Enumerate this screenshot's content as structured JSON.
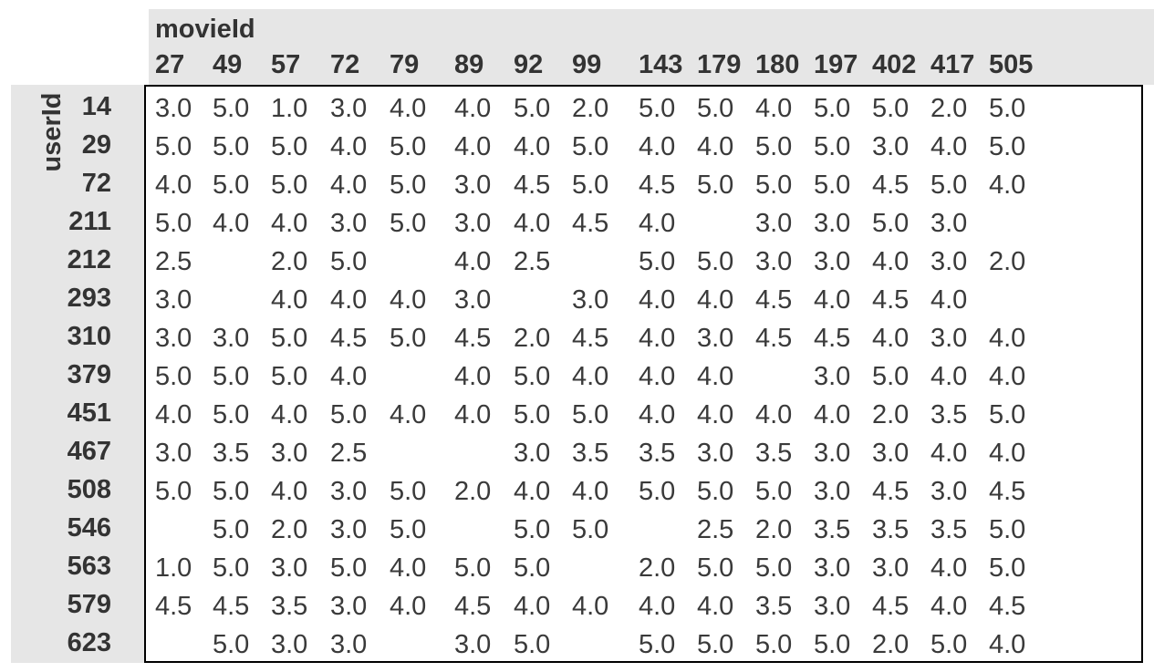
{
  "colors": {
    "header_bg": "#e6e6e6",
    "header_text": "#333333",
    "cell_text": "#3a3a3a",
    "grid_border": "#000000",
    "page_bg": "#ffffff"
  },
  "table": {
    "col_axis_label": "movieId",
    "row_axis_label": "userId"
  },
  "chart_data": {
    "type": "table",
    "title": "",
    "col_header_name": "movieId",
    "row_header_name": "userId",
    "columns": [
      27,
      49,
      57,
      72,
      79,
      89,
      92,
      99,
      143,
      179,
      180,
      197,
      402,
      417,
      505
    ],
    "value_format": "1 decimal place, blank = missing rating",
    "rows": [
      {
        "userId": 14,
        "values": [
          3.0,
          5.0,
          1.0,
          3.0,
          4.0,
          4.0,
          5.0,
          2.0,
          5.0,
          5.0,
          4.0,
          5.0,
          5.0,
          2.0,
          5.0
        ]
      },
      {
        "userId": 29,
        "values": [
          5.0,
          5.0,
          5.0,
          4.0,
          5.0,
          4.0,
          4.0,
          5.0,
          4.0,
          4.0,
          5.0,
          5.0,
          3.0,
          4.0,
          5.0
        ]
      },
      {
        "userId": 72,
        "values": [
          4.0,
          5.0,
          5.0,
          4.0,
          5.0,
          3.0,
          4.5,
          5.0,
          4.5,
          5.0,
          5.0,
          5.0,
          4.5,
          5.0,
          4.0
        ]
      },
      {
        "userId": 211,
        "values": [
          5.0,
          4.0,
          4.0,
          3.0,
          5.0,
          3.0,
          4.0,
          4.5,
          4.0,
          null,
          3.0,
          3.0,
          5.0,
          3.0,
          null
        ]
      },
      {
        "userId": 212,
        "values": [
          2.5,
          null,
          2.0,
          5.0,
          null,
          4.0,
          2.5,
          null,
          5.0,
          5.0,
          3.0,
          3.0,
          4.0,
          3.0,
          2.0
        ]
      },
      {
        "userId": 293,
        "values": [
          3.0,
          null,
          4.0,
          4.0,
          4.0,
          3.0,
          null,
          3.0,
          4.0,
          4.0,
          4.5,
          4.0,
          4.5,
          4.0,
          null
        ]
      },
      {
        "userId": 310,
        "values": [
          3.0,
          3.0,
          5.0,
          4.5,
          5.0,
          4.5,
          2.0,
          4.5,
          4.0,
          3.0,
          4.5,
          4.5,
          4.0,
          3.0,
          4.0
        ]
      },
      {
        "userId": 379,
        "values": [
          5.0,
          5.0,
          5.0,
          4.0,
          null,
          4.0,
          5.0,
          4.0,
          4.0,
          4.0,
          null,
          3.0,
          5.0,
          4.0,
          4.0
        ]
      },
      {
        "userId": 451,
        "values": [
          4.0,
          5.0,
          4.0,
          5.0,
          4.0,
          4.0,
          5.0,
          5.0,
          4.0,
          4.0,
          4.0,
          4.0,
          2.0,
          3.5,
          5.0
        ]
      },
      {
        "userId": 467,
        "values": [
          3.0,
          3.5,
          3.0,
          2.5,
          null,
          null,
          3.0,
          3.5,
          3.5,
          3.0,
          3.5,
          3.0,
          3.0,
          4.0,
          4.0
        ]
      },
      {
        "userId": 508,
        "values": [
          5.0,
          5.0,
          4.0,
          3.0,
          5.0,
          2.0,
          4.0,
          4.0,
          5.0,
          5.0,
          5.0,
          3.0,
          4.5,
          3.0,
          4.5
        ]
      },
      {
        "userId": 546,
        "values": [
          null,
          5.0,
          2.0,
          3.0,
          5.0,
          null,
          5.0,
          5.0,
          null,
          2.5,
          2.0,
          3.5,
          3.5,
          3.5,
          5.0
        ]
      },
      {
        "userId": 563,
        "values": [
          1.0,
          5.0,
          3.0,
          5.0,
          4.0,
          5.0,
          5.0,
          null,
          2.0,
          5.0,
          5.0,
          3.0,
          3.0,
          4.0,
          5.0
        ]
      },
      {
        "userId": 579,
        "values": [
          4.5,
          4.5,
          3.5,
          3.0,
          4.0,
          4.5,
          4.0,
          4.0,
          4.0,
          4.0,
          3.5,
          3.0,
          4.5,
          4.0,
          4.5
        ]
      },
      {
        "userId": 623,
        "values": [
          null,
          5.0,
          3.0,
          3.0,
          null,
          3.0,
          5.0,
          null,
          5.0,
          5.0,
          5.0,
          5.0,
          2.0,
          5.0,
          4.0
        ]
      }
    ]
  }
}
